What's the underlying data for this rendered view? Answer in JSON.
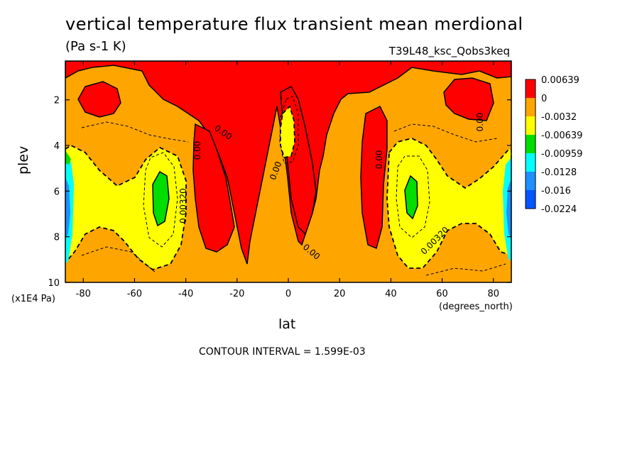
{
  "title": "vertical temperature flux transient mean merdional",
  "subtitle": "(Pa s-1 K)",
  "dataset_label": "T39L48_ksc_Qobs3keq",
  "contour_interval": "CONTOUR INTERVAL = 1.599E-03",
  "chart_data": {
    "type": "heatmap",
    "xlabel": "lat",
    "xunits": "(degrees_north)",
    "ylabel": "plev",
    "yunits": "(x1E4 Pa)",
    "xlim": [
      -87,
      87
    ],
    "ylim": [
      10,
      0.3
    ],
    "x_ticks": [
      -80,
      -60,
      -40,
      -20,
      0,
      20,
      40,
      60,
      80
    ],
    "y_ticks": [
      2,
      4,
      6,
      8,
      10
    ],
    "colorbar": {
      "labels": [
        "0.00639",
        "0",
        "-0.0032",
        "-0.00639",
        "-0.00959",
        "-0.0128",
        "-0.016",
        "-0.0224"
      ],
      "colors": [
        "#ff0000",
        "#ffa500",
        "#ffff00",
        "#00dd00",
        "#00ffff",
        "#1e90ff",
        "#0055ff"
      ]
    },
    "contour_labels": [
      "0.00",
      "0.00",
      "0.00",
      "0.00",
      "0.00",
      "0.00",
      "0.00320",
      "0.00320"
    ],
    "colors": {
      "positive": "#ff0000",
      "zero_band": "#ffa500",
      "neg1": "#ffff00",
      "neg2": "#00dd00",
      "neg3": "#00ffff",
      "neg4": "#1e90ff"
    }
  }
}
